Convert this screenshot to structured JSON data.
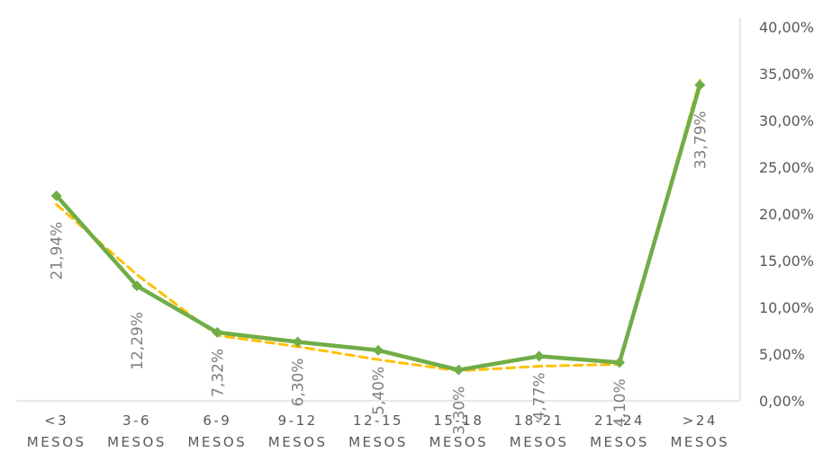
{
  "chart_data": {
    "type": "line",
    "title": "",
    "xlabel": "",
    "ylabel": "",
    "categories": [
      [
        "<3",
        "MESOS"
      ],
      [
        "3-6",
        "MESOS"
      ],
      [
        "6-9",
        "MESOS"
      ],
      [
        "9-12",
        "MESOS"
      ],
      [
        "12-15",
        "MESOS"
      ],
      [
        "15-18",
        "MESOS"
      ],
      [
        "18-21",
        "MESOS"
      ],
      [
        "21-24",
        "MESOS"
      ],
      [
        ">24",
        "MESOS"
      ]
    ],
    "ylim": [
      0,
      40
    ],
    "yticks": [
      "0,00%",
      "5,00%",
      "10,00%",
      "15,00%",
      "20,00%",
      "25,00%",
      "30,00%",
      "35,00%",
      "40,00%"
    ],
    "y_axis_position": "right",
    "grid": false,
    "legend": "none",
    "series": [
      {
        "style": "solid",
        "color": "#70ad47",
        "values": [
          21.94,
          12.29,
          7.32,
          6.3,
          5.4,
          3.3,
          4.77,
          4.1,
          33.79
        ],
        "data_labels": [
          "21,94%",
          "12,29%",
          "7,32%",
          "6,30%",
          "5,40%",
          "3,30%",
          "4,77%",
          "4,10%",
          "33,79%"
        ]
      },
      {
        "style": "dashed",
        "color": "#ffc000",
        "values": [
          21.0,
          13.5,
          7.0,
          5.8,
          4.4,
          3.2,
          3.7,
          3.9,
          34.3
        ]
      }
    ]
  }
}
